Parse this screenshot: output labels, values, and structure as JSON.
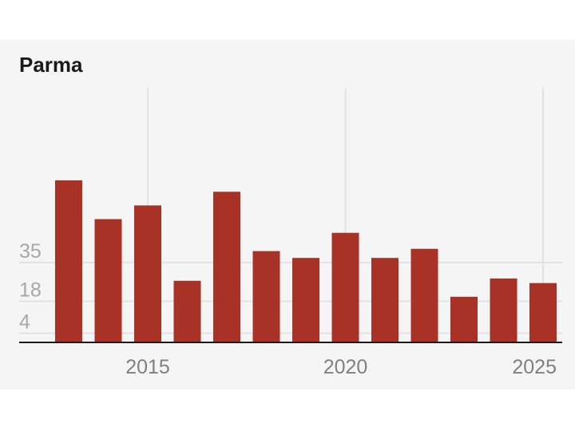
{
  "chart_data": {
    "type": "bar",
    "title": "Parma",
    "xlabel": "",
    "ylabel": "",
    "x": [
      2013,
      2014,
      2015,
      2016,
      2017,
      2018,
      2019,
      2020,
      2021,
      2022,
      2023,
      2024,
      2025
    ],
    "values": [
      71,
      54,
      60,
      27,
      66,
      40,
      37,
      48,
      37,
      41,
      20,
      28,
      26
    ],
    "ylim": [
      0,
      112
    ],
    "yticks": [
      4,
      18,
      35
    ],
    "xticks": [
      2015,
      2020,
      2025
    ],
    "grid": true,
    "bar_color": "#a93226",
    "panel_color": "#f5f5f5"
  }
}
